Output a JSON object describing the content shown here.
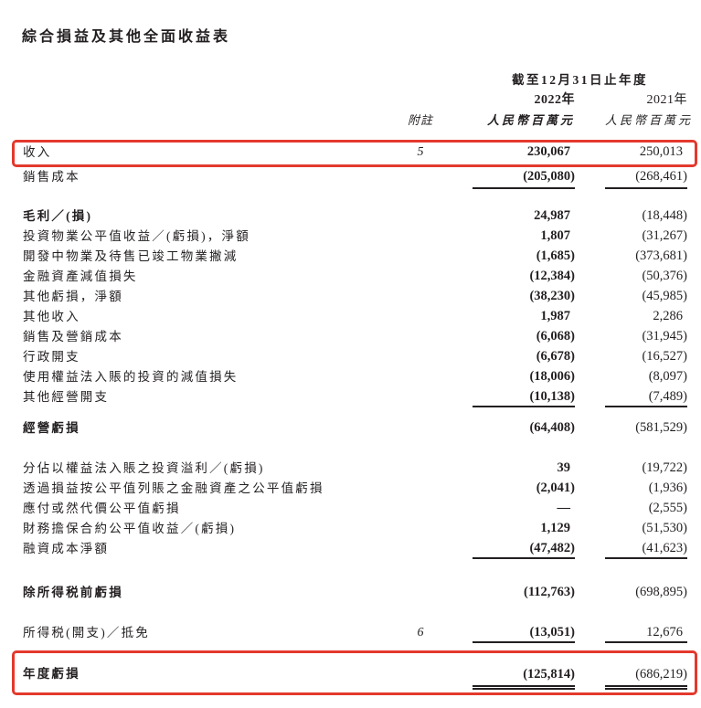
{
  "colors": {
    "highlight_red": "#e4392e",
    "text": "#231f20"
  },
  "page": {
    "title": "綜合損益及其他全面收益表"
  },
  "table": {
    "header": {
      "period": "截至12月31日止年度",
      "year_2022": "2022年",
      "year_2021": "2021年",
      "note_label": "附註",
      "unit_2022": "人民幣百萬元",
      "unit_2021": "人民幣百萬元"
    },
    "sections": [
      {
        "rows": [
          {
            "label": "收入",
            "note": "5",
            "v2022": "230,067",
            "v2021": "250,013",
            "bold": false,
            "rule": "none",
            "highlight": true
          },
          {
            "label": "銷售成本",
            "note": "",
            "v2022": "(205,080)",
            "v2021": "(268,461)",
            "bold": false,
            "rule": "single",
            "highlight": false
          }
        ]
      },
      {
        "rows": [
          {
            "label": "毛利／(損)",
            "note": "",
            "v2022": "24,987",
            "v2021": "(18,448)",
            "bold": true,
            "rule": "none",
            "highlight": false
          },
          {
            "label": "投資物業公平值收益／(虧損)，淨額",
            "note": "",
            "v2022": "1,807",
            "v2021": "(31,267)",
            "bold": false,
            "rule": "none",
            "highlight": false
          },
          {
            "label": "開發中物業及待售已竣工物業撇減",
            "note": "",
            "v2022": "(1,685)",
            "v2021": "(373,681)",
            "bold": false,
            "rule": "none",
            "highlight": false
          },
          {
            "label": "金融資產減值損失",
            "note": "",
            "v2022": "(12,384)",
            "v2021": "(50,376)",
            "bold": false,
            "rule": "none",
            "highlight": false
          },
          {
            "label": "其他虧損，淨額",
            "note": "",
            "v2022": "(38,230)",
            "v2021": "(45,985)",
            "bold": false,
            "rule": "none",
            "highlight": false
          },
          {
            "label": "其他收入",
            "note": "",
            "v2022": "1,987",
            "v2021": "2,286",
            "bold": false,
            "rule": "none",
            "highlight": false
          },
          {
            "label": "銷售及營銷成本",
            "note": "",
            "v2022": "(6,068)",
            "v2021": "(31,945)",
            "bold": false,
            "rule": "none",
            "highlight": false
          },
          {
            "label": "行政開支",
            "note": "",
            "v2022": "(6,678)",
            "v2021": "(16,527)",
            "bold": false,
            "rule": "none",
            "highlight": false
          },
          {
            "label": "使用權益法入賬的投資的減值損失",
            "note": "",
            "v2022": "(18,006)",
            "v2021": "(8,097)",
            "bold": false,
            "rule": "none",
            "highlight": false
          },
          {
            "label": "其他經營開支",
            "note": "",
            "v2022": "(10,138)",
            "v2021": "(7,489)",
            "bold": false,
            "rule": "single",
            "highlight": false
          }
        ]
      },
      {
        "rows": [
          {
            "label": "經營虧損",
            "note": "",
            "v2022": "(64,408)",
            "v2021": "(581,529)",
            "bold": true,
            "rule": "none",
            "highlight": false
          }
        ]
      },
      {
        "rows": [
          {
            "label": "分佔以權益法入賬之投資溢利／(虧損)",
            "note": "",
            "v2022": "39",
            "v2021": "(19,722)",
            "bold": false,
            "rule": "none",
            "highlight": false
          },
          {
            "label": "透過損益按公平值列賬之金融資產之公平值虧損",
            "note": "",
            "v2022": "(2,041)",
            "v2021": "(1,936)",
            "bold": false,
            "rule": "none",
            "highlight": false
          },
          {
            "label": "應付或然代價公平值虧損",
            "note": "",
            "v2022": "—",
            "v2021": "(2,555)",
            "bold": false,
            "rule": "none",
            "highlight": false
          },
          {
            "label": "財務擔保合約公平值收益／(虧損)",
            "note": "",
            "v2022": "1,129",
            "v2021": "(51,530)",
            "bold": false,
            "rule": "none",
            "highlight": false
          },
          {
            "label": "融資成本淨額",
            "note": "",
            "v2022": "(47,482)",
            "v2021": "(41,623)",
            "bold": false,
            "rule": "single",
            "highlight": false
          }
        ]
      },
      {
        "rows": [
          {
            "label": "除所得税前虧損",
            "note": "",
            "v2022": "(112,763)",
            "v2021": "(698,895)",
            "bold": true,
            "rule": "none",
            "highlight": false
          }
        ]
      },
      {
        "rows": [
          {
            "label": "所得税(開支)／抵免",
            "note": "6",
            "v2022": "(13,051)",
            "v2021": "12,676",
            "bold": false,
            "rule": "single",
            "highlight": false
          }
        ]
      },
      {
        "rows": [
          {
            "label": "年度虧損",
            "note": "",
            "v2022": "(125,814)",
            "v2021": "(686,219)",
            "bold": true,
            "rule": "double",
            "highlight": true
          }
        ]
      }
    ]
  }
}
